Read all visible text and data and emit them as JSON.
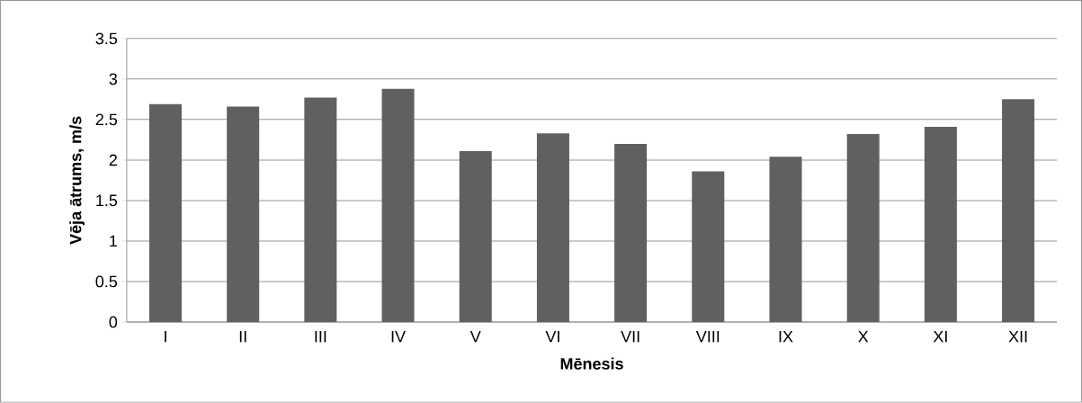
{
  "chart_data": {
    "type": "bar",
    "xlabel": "Mēnesis",
    "ylabel": "Vēja ātrums, m/s",
    "categories": [
      "I",
      "II",
      "III",
      "IV",
      "V",
      "VI",
      "VII",
      "VIII",
      "IX",
      "X",
      "XI",
      "XII"
    ],
    "values": [
      2.69,
      2.66,
      2.77,
      2.88,
      2.11,
      2.33,
      2.2,
      1.86,
      2.04,
      2.32,
      2.41,
      2.75
    ],
    "color": "#606060",
    "ylim": [
      0,
      3.5
    ],
    "yticks": [
      0,
      0.5,
      1,
      1.5,
      2,
      2.5,
      3,
      3.5
    ],
    "grid": "y"
  }
}
